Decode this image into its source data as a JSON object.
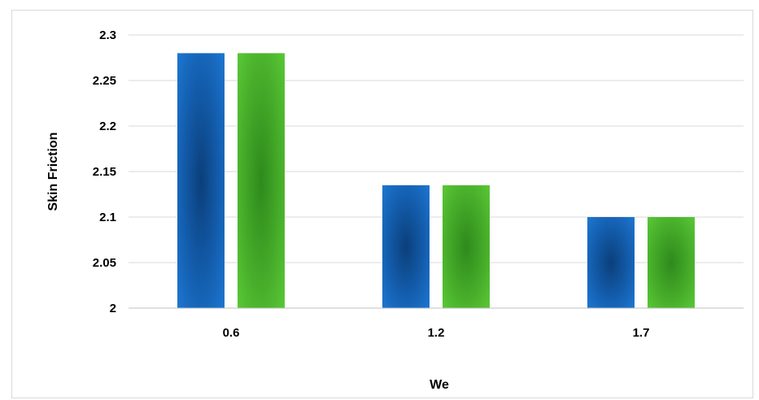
{
  "chart_data": {
    "type": "bar",
    "title": "",
    "xlabel": "We",
    "ylabel": "Skin Friction",
    "categories": [
      "0.6",
      "1.2",
      "1.7"
    ],
    "series": [
      {
        "values": [
          2.28,
          2.135,
          2.1
        ],
        "color": "#1f7ad6"
      },
      {
        "values": [
          2.28,
          2.135,
          2.1
        ],
        "color": "#5ccc37"
      }
    ],
    "ylim": [
      2,
      2.3
    ],
    "yticks": [
      "2",
      "2.05",
      "2.1",
      "2.15",
      "2.2",
      "2.25",
      "2.3"
    ],
    "grid": true,
    "legend": "none"
  }
}
